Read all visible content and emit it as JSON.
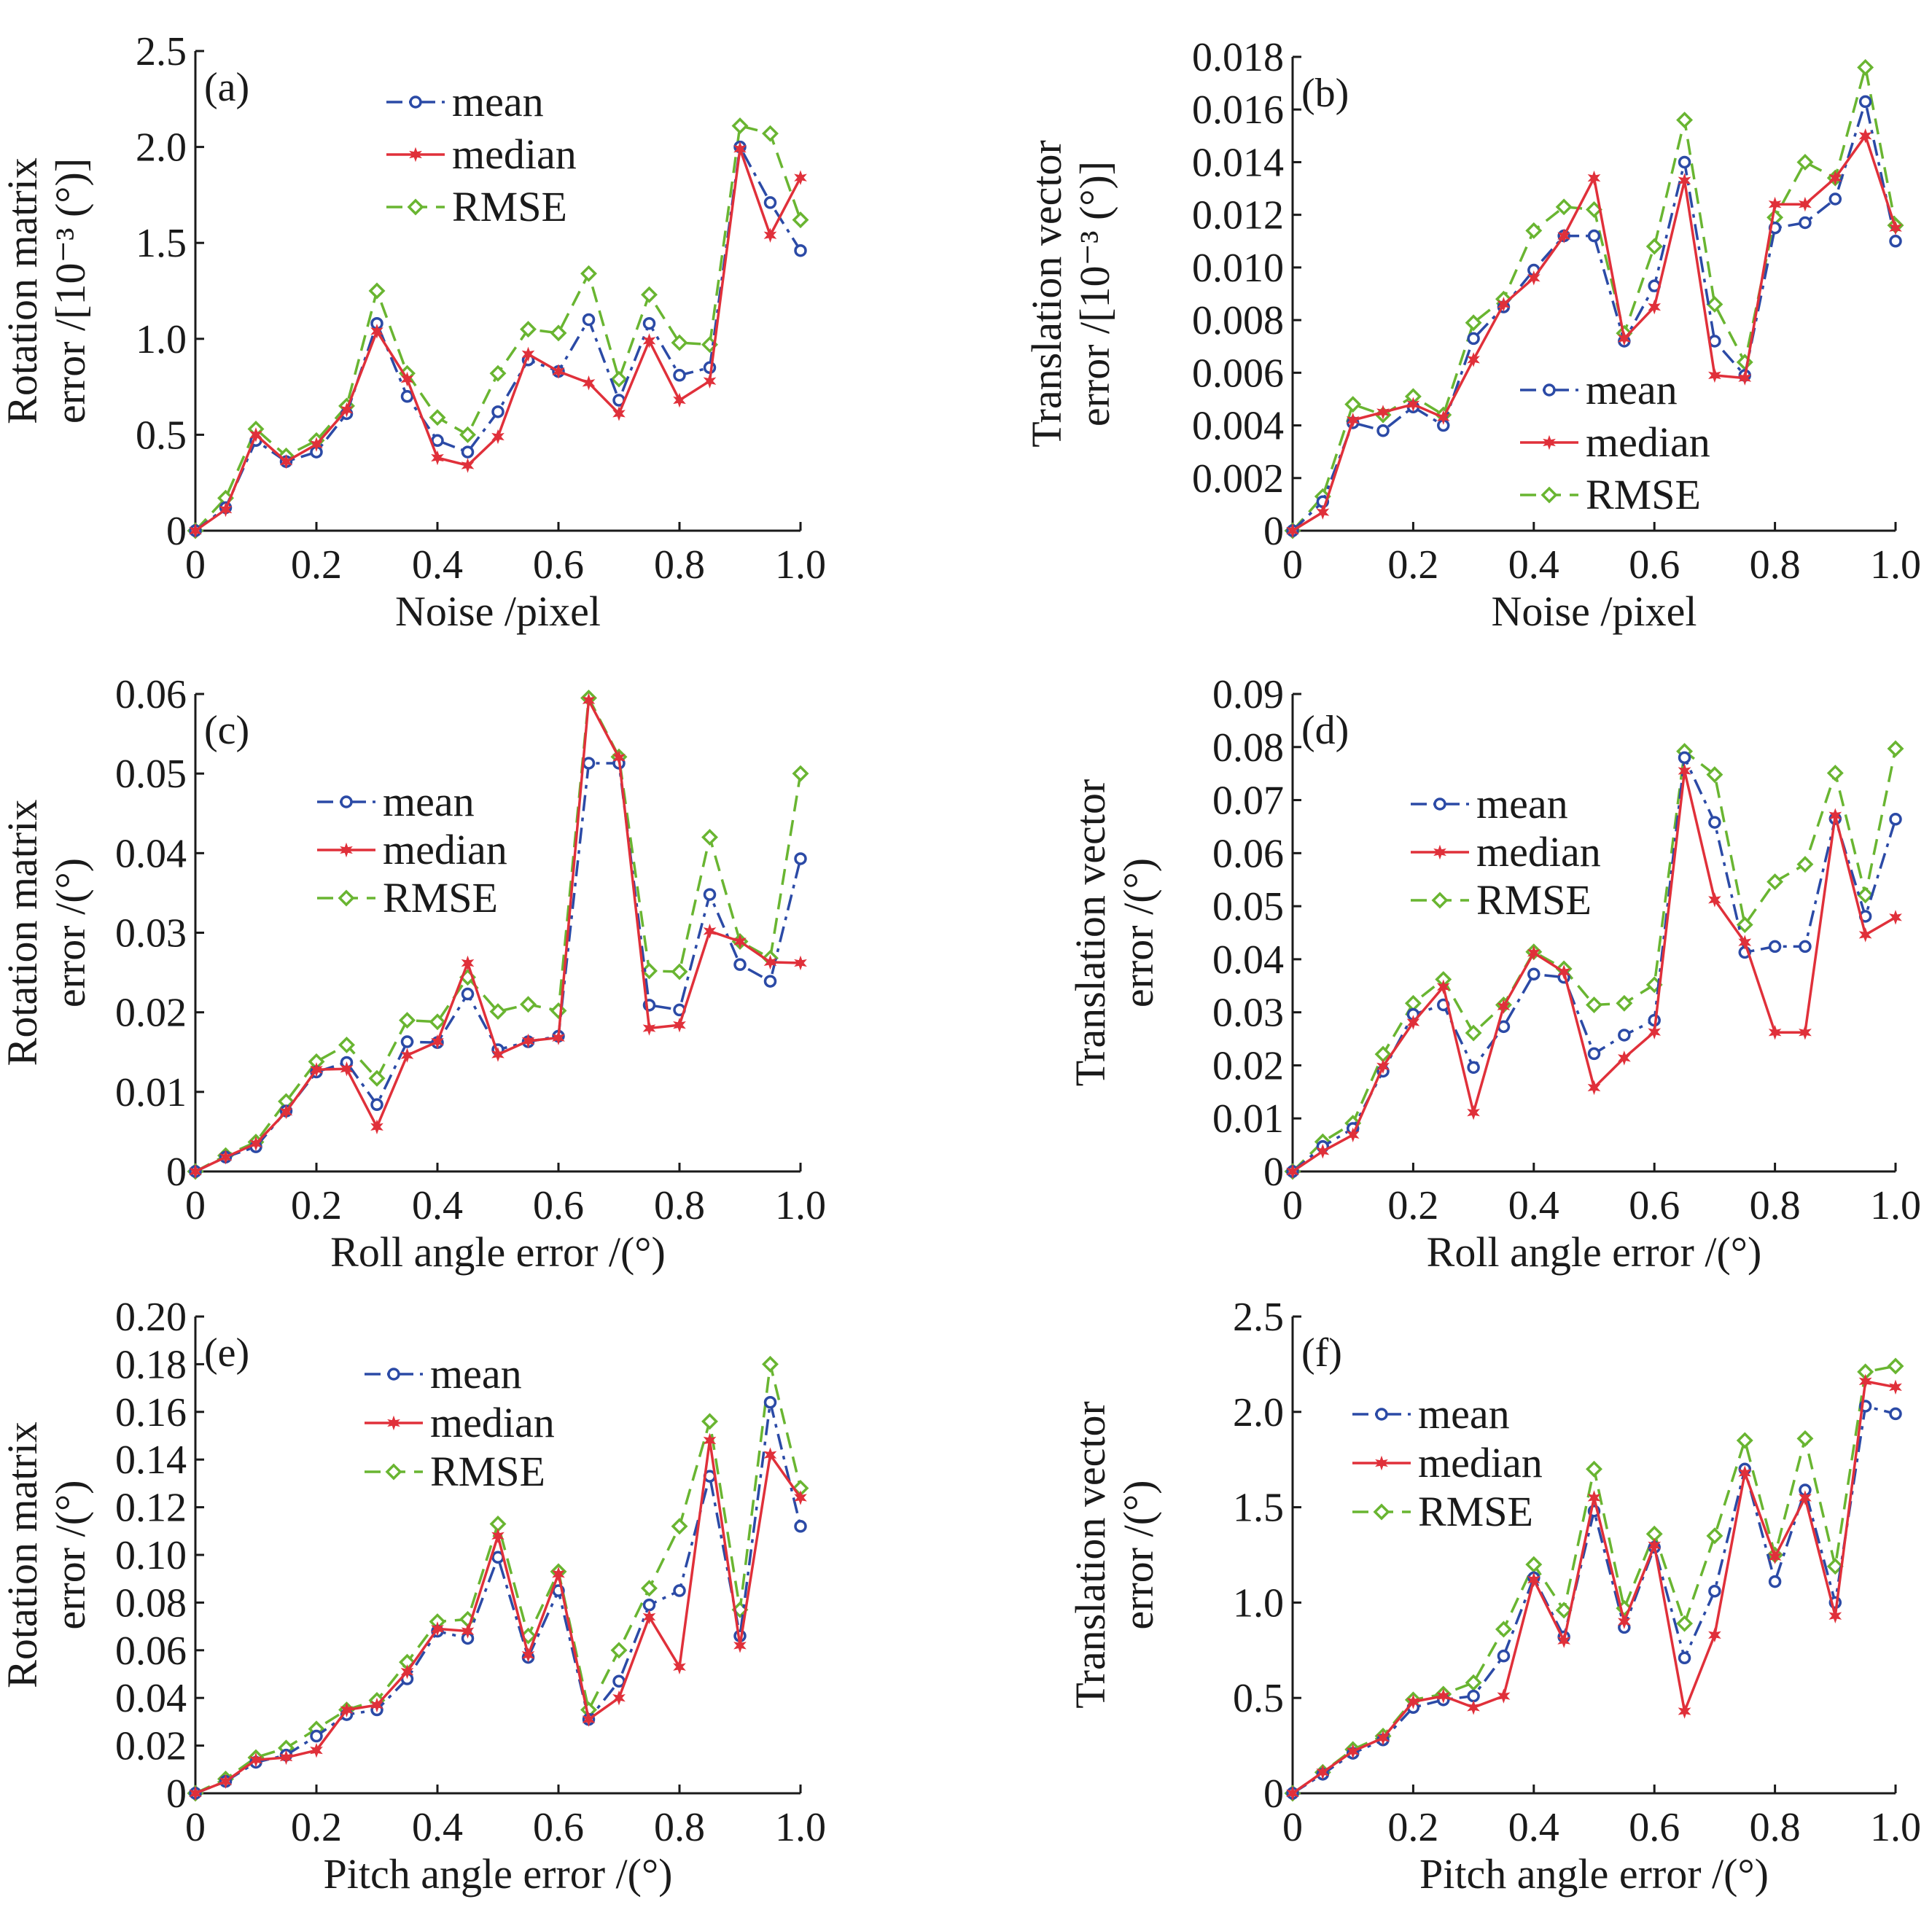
{
  "colors": {
    "mean": "#2b4aa6",
    "median": "#e0303a",
    "rmse": "#69b531",
    "axis": "#1a1a1a"
  },
  "chart_data": [
    {
      "type": "line",
      "panel_label": "(a)",
      "xlabel": "Noise /pixel",
      "ylabel_lines": [
        "Rotation matrix",
        "error /[10⁻³ (°)]"
      ],
      "xlim": [
        0,
        1
      ],
      "ylim": [
        0,
        2.5
      ],
      "xticks": [
        0,
        0.2,
        0.4,
        0.6,
        0.8,
        1.0
      ],
      "xtick_labels": [
        "0",
        "0.2",
        "0.4",
        "0.6",
        "0.8",
        "1.0"
      ],
      "yticks": [
        0,
        0.5,
        1.0,
        1.5,
        2.0,
        2.5
      ],
      "ytick_labels": [
        "0",
        "0.5",
        "1.0",
        "1.5",
        "2.0",
        "2.5"
      ],
      "legend_placement": "top-center",
      "x": [
        0,
        0.05,
        0.1,
        0.15,
        0.2,
        0.25,
        0.3,
        0.35,
        0.4,
        0.45,
        0.5,
        0.55,
        0.6,
        0.65,
        0.7,
        0.75,
        0.8,
        0.85,
        0.9,
        0.95,
        1.0
      ],
      "series": [
        {
          "key": "mean",
          "name": "mean",
          "values": [
            0,
            0.12,
            0.47,
            0.36,
            0.41,
            0.61,
            1.08,
            0.7,
            0.47,
            0.41,
            0.62,
            0.89,
            0.83,
            1.1,
            0.68,
            1.08,
            0.81,
            0.85,
            2.0,
            1.71,
            1.46
          ]
        },
        {
          "key": "median",
          "name": "median",
          "values": [
            0,
            0.11,
            0.5,
            0.36,
            0.45,
            0.63,
            1.04,
            0.79,
            0.38,
            0.34,
            0.49,
            0.92,
            0.83,
            0.77,
            0.61,
            0.99,
            0.68,
            0.78,
            1.99,
            1.54,
            1.84
          ]
        },
        {
          "key": "rmse",
          "name": "RMSE",
          "values": [
            0,
            0.17,
            0.53,
            0.39,
            0.47,
            0.65,
            1.25,
            0.82,
            0.59,
            0.5,
            0.82,
            1.05,
            1.03,
            1.34,
            0.79,
            1.23,
            0.98,
            0.97,
            2.11,
            2.07,
            1.62
          ]
        }
      ]
    },
    {
      "type": "line",
      "panel_label": "(b)",
      "xlabel": "Noise /pixel",
      "ylabel_lines": [
        "Translation vector",
        "error /[10⁻³ (°)]"
      ],
      "xlim": [
        0,
        1
      ],
      "ylim": [
        0,
        0.018
      ],
      "xticks": [
        0,
        0.2,
        0.4,
        0.6,
        0.8,
        1.0
      ],
      "xtick_labels": [
        "0",
        "0.2",
        "0.4",
        "0.6",
        "0.8",
        "1.0"
      ],
      "yticks": [
        0,
        0.002,
        0.004,
        0.006,
        0.008,
        0.01,
        0.012,
        0.014,
        0.016,
        0.018
      ],
      "ytick_labels": [
        "0",
        "0.002",
        "0.004",
        "0.006",
        "0.008",
        "0.010",
        "0.012",
        "0.014",
        "0.016",
        "0.018"
      ],
      "legend_placement": "lower-right",
      "x": [
        0,
        0.05,
        0.1,
        0.15,
        0.2,
        0.25,
        0.3,
        0.35,
        0.4,
        0.45,
        0.5,
        0.55,
        0.6,
        0.65,
        0.7,
        0.75,
        0.8,
        0.85,
        0.9,
        0.95,
        1.0
      ],
      "series": [
        {
          "key": "mean",
          "name": "mean",
          "values": [
            0,
            0.0011,
            0.0041,
            0.0038,
            0.0047,
            0.004,
            0.0073,
            0.0085,
            0.0099,
            0.0112,
            0.0112,
            0.0072,
            0.0093,
            0.014,
            0.0072,
            0.0059,
            0.0115,
            0.0117,
            0.0126,
            0.0163,
            0.011
          ]
        },
        {
          "key": "median",
          "name": "median",
          "values": [
            0,
            0.0007,
            0.0042,
            0.0045,
            0.0048,
            0.0043,
            0.0065,
            0.0086,
            0.0096,
            0.0112,
            0.0134,
            0.0073,
            0.0085,
            0.0133,
            0.0059,
            0.0058,
            0.0124,
            0.0124,
            0.0134,
            0.015,
            0.0115
          ]
        },
        {
          "key": "rmse",
          "name": "RMSE",
          "values": [
            0,
            0.0013,
            0.0048,
            0.0044,
            0.0051,
            0.0044,
            0.0079,
            0.0088,
            0.0114,
            0.0123,
            0.0122,
            0.0075,
            0.0108,
            0.0156,
            0.0086,
            0.0064,
            0.0119,
            0.014,
            0.0134,
            0.0176,
            0.0116
          ]
        }
      ]
    },
    {
      "type": "line",
      "panel_label": "(c)",
      "xlabel": "Roll angle error /(°)",
      "ylabel_lines": [
        "Rotation matrix",
        "error /(°)"
      ],
      "xlim": [
        0,
        1
      ],
      "ylim": [
        0,
        0.06
      ],
      "xticks": [
        0,
        0.2,
        0.4,
        0.6,
        0.8,
        1.0
      ],
      "xtick_labels": [
        "0",
        "0.2",
        "0.4",
        "0.6",
        "0.8",
        "1.0"
      ],
      "yticks": [
        0,
        0.01,
        0.02,
        0.03,
        0.04,
        0.05,
        0.06
      ],
      "ytick_labels": [
        "0",
        "0.01",
        "0.02",
        "0.03",
        "0.04",
        "0.05",
        "0.06"
      ],
      "legend_placement": "upper-left",
      "x": [
        0,
        0.05,
        0.1,
        0.15,
        0.2,
        0.25,
        0.3,
        0.35,
        0.4,
        0.45,
        0.5,
        0.55,
        0.6,
        0.65,
        0.7,
        0.75,
        0.8,
        0.85,
        0.9,
        0.95,
        1.0
      ],
      "series": [
        {
          "key": "mean",
          "name": "mean",
          "values": [
            0,
            0.0018,
            0.0031,
            0.0076,
            0.0125,
            0.0137,
            0.0084,
            0.0163,
            0.0162,
            0.0223,
            0.0153,
            0.0163,
            0.017,
            0.0513,
            0.0513,
            0.0209,
            0.0203,
            0.0348,
            0.026,
            0.0239,
            0.0393
          ]
        },
        {
          "key": "median",
          "name": "median",
          "values": [
            0,
            0.0018,
            0.0035,
            0.0075,
            0.0128,
            0.0129,
            0.0056,
            0.0146,
            0.0163,
            0.0262,
            0.0147,
            0.0164,
            0.0168,
            0.0592,
            0.052,
            0.018,
            0.0184,
            0.0302,
            0.0289,
            0.0263,
            0.0262
          ]
        },
        {
          "key": "rmse",
          "name": "RMSE",
          "values": [
            0,
            0.002,
            0.0037,
            0.0088,
            0.0138,
            0.0159,
            0.0117,
            0.019,
            0.0188,
            0.0244,
            0.0201,
            0.021,
            0.0202,
            0.0595,
            0.0521,
            0.0252,
            0.0251,
            0.042,
            0.0289,
            0.0268,
            0.05
          ]
        }
      ]
    },
    {
      "type": "line",
      "panel_label": "(d)",
      "xlabel": "Roll angle error /(°)",
      "ylabel_lines": [
        "Translation vector",
        "error /(°)"
      ],
      "xlim": [
        0,
        1
      ],
      "ylim": [
        0,
        0.09
      ],
      "xticks": [
        0,
        0.2,
        0.4,
        0.6,
        0.8,
        1.0
      ],
      "xtick_labels": [
        "0",
        "0.2",
        "0.4",
        "0.6",
        "0.8",
        "1.0"
      ],
      "yticks": [
        0,
        0.01,
        0.02,
        0.03,
        0.04,
        0.05,
        0.06,
        0.07,
        0.08,
        0.09
      ],
      "ytick_labels": [
        "0",
        "0.01",
        "0.02",
        "0.03",
        "0.04",
        "0.05",
        "0.06",
        "0.07",
        "0.08",
        "0.09"
      ],
      "legend_placement": "upper-left",
      "x": [
        0,
        0.05,
        0.1,
        0.15,
        0.2,
        0.25,
        0.3,
        0.35,
        0.4,
        0.45,
        0.5,
        0.55,
        0.6,
        0.65,
        0.7,
        0.75,
        0.8,
        0.85,
        0.9,
        0.95,
        1.0
      ],
      "series": [
        {
          "key": "mean",
          "name": "mean",
          "values": [
            0,
            0.0047,
            0.0081,
            0.0189,
            0.0296,
            0.0314,
            0.0196,
            0.0273,
            0.0372,
            0.0366,
            0.0222,
            0.0257,
            0.0285,
            0.078,
            0.0658,
            0.0413,
            0.0424,
            0.0424,
            0.0665,
            0.0481,
            0.0664
          ]
        },
        {
          "key": "median",
          "name": "median",
          "values": [
            0,
            0.0038,
            0.0069,
            0.0198,
            0.0281,
            0.0348,
            0.0111,
            0.0311,
            0.0412,
            0.0376,
            0.0158,
            0.0214,
            0.0263,
            0.0755,
            0.0512,
            0.0432,
            0.0262,
            0.0262,
            0.0671,
            0.0446,
            0.0479
          ]
        },
        {
          "key": "rmse",
          "name": "RMSE",
          "values": [
            0,
            0.0056,
            0.0091,
            0.0221,
            0.0317,
            0.0362,
            0.0261,
            0.0314,
            0.0414,
            0.0382,
            0.0314,
            0.0317,
            0.0352,
            0.0792,
            0.0748,
            0.0465,
            0.0546,
            0.0579,
            0.0751,
            0.0521,
            0.0797
          ]
        }
      ]
    },
    {
      "type": "line",
      "panel_label": "(e)",
      "xlabel": "Pitch angle error /(°)",
      "ylabel_lines": [
        "Rotation matrix",
        "error /(°)"
      ],
      "xlim": [
        0,
        1
      ],
      "ylim": [
        0,
        0.2
      ],
      "xticks": [
        0,
        0.2,
        0.4,
        0.6,
        0.8,
        1.0
      ],
      "xtick_labels": [
        "0",
        "0.2",
        "0.4",
        "0.6",
        "0.8",
        "1.0"
      ],
      "yticks": [
        0,
        0.02,
        0.04,
        0.06,
        0.08,
        0.1,
        0.12,
        0.14,
        0.16,
        0.18,
        0.2
      ],
      "ytick_labels": [
        "0",
        "0.02",
        "0.04",
        "0.06",
        "0.08",
        "0.10",
        "0.12",
        "0.14",
        "0.16",
        "0.18",
        "0.20"
      ],
      "legend_placement": "upper-center",
      "x": [
        0,
        0.05,
        0.1,
        0.15,
        0.2,
        0.25,
        0.3,
        0.35,
        0.4,
        0.45,
        0.5,
        0.55,
        0.6,
        0.65,
        0.7,
        0.75,
        0.8,
        0.85,
        0.9,
        0.95,
        1.0
      ],
      "series": [
        {
          "key": "mean",
          "name": "mean",
          "values": [
            0,
            0.005,
            0.013,
            0.016,
            0.024,
            0.033,
            0.035,
            0.048,
            0.068,
            0.065,
            0.099,
            0.057,
            0.085,
            0.031,
            0.047,
            0.079,
            0.085,
            0.133,
            0.066,
            0.164,
            0.112
          ]
        },
        {
          "key": "median",
          "name": "median",
          "values": [
            0,
            0.005,
            0.014,
            0.015,
            0.018,
            0.035,
            0.037,
            0.051,
            0.069,
            0.068,
            0.108,
            0.058,
            0.092,
            0.031,
            0.04,
            0.074,
            0.053,
            0.148,
            0.062,
            0.142,
            0.124
          ]
        },
        {
          "key": "rmse",
          "name": "RMSE",
          "values": [
            0,
            0.006,
            0.015,
            0.019,
            0.027,
            0.035,
            0.039,
            0.055,
            0.072,
            0.073,
            0.113,
            0.066,
            0.093,
            0.035,
            0.06,
            0.086,
            0.112,
            0.156,
            0.077,
            0.18,
            0.128
          ]
        }
      ]
    },
    {
      "type": "line",
      "panel_label": "(f)",
      "xlabel": "Pitch angle error /(°)",
      "ylabel_lines": [
        "Translation vector",
        "error /(°)"
      ],
      "xlim": [
        0,
        1
      ],
      "ylim": [
        0,
        2.5
      ],
      "xticks": [
        0,
        0.2,
        0.4,
        0.6,
        0.8,
        1.0
      ],
      "xtick_labels": [
        "0",
        "0.2",
        "0.4",
        "0.6",
        "0.8",
        "1.0"
      ],
      "yticks": [
        0,
        0.5,
        1.0,
        1.5,
        2.0,
        2.5
      ],
      "ytick_labels": [
        "0",
        "0.5",
        "1.0",
        "1.5",
        "2.0",
        "2.5"
      ],
      "legend_placement": "upper-left",
      "x": [
        0,
        0.05,
        0.1,
        0.15,
        0.2,
        0.25,
        0.3,
        0.35,
        0.4,
        0.45,
        0.5,
        0.55,
        0.6,
        0.65,
        0.7,
        0.75,
        0.8,
        0.85,
        0.9,
        0.95,
        1.0
      ],
      "series": [
        {
          "key": "mean",
          "name": "mean",
          "values": [
            0,
            0.1,
            0.21,
            0.28,
            0.45,
            0.49,
            0.51,
            0.72,
            1.13,
            0.82,
            1.48,
            0.87,
            1.29,
            0.71,
            1.06,
            1.7,
            1.11,
            1.59,
            1.0,
            2.03,
            1.99
          ]
        },
        {
          "key": "median",
          "name": "median",
          "values": [
            0,
            0.11,
            0.22,
            0.29,
            0.48,
            0.51,
            0.45,
            0.51,
            1.12,
            0.8,
            1.55,
            0.9,
            1.3,
            0.43,
            0.83,
            1.68,
            1.24,
            1.55,
            0.93,
            2.16,
            2.13
          ]
        },
        {
          "key": "rmse",
          "name": "RMSE",
          "values": [
            0,
            0.11,
            0.23,
            0.3,
            0.49,
            0.52,
            0.58,
            0.86,
            1.2,
            0.96,
            1.7,
            0.97,
            1.36,
            0.89,
            1.35,
            1.85,
            1.25,
            1.86,
            1.19,
            2.21,
            2.24
          ]
        }
      ]
    }
  ]
}
